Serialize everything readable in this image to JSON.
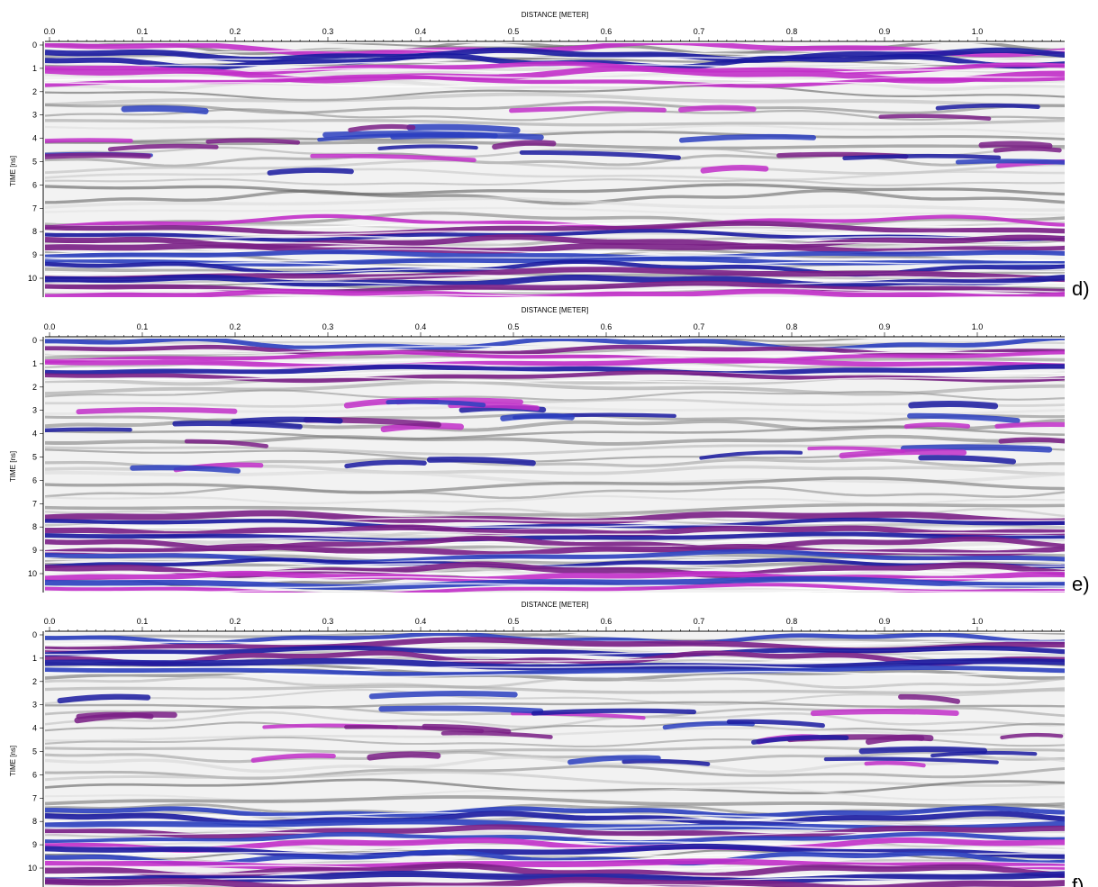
{
  "panels": [
    {
      "label": "d)",
      "x_axis_title": "DISTANCE [METER]",
      "y_axis_title": "TIME [ns]",
      "x_tick_labels": [
        "0.0",
        "0.1",
        "0.2",
        "0.3",
        "0.4",
        "0.5",
        "0.6",
        "0.7",
        "0.8",
        "0.9",
        "1.0"
      ],
      "y_tick_labels": [
        "0",
        "1",
        "2",
        "3",
        "4",
        "5",
        "6",
        "7",
        "8",
        "9",
        "10"
      ]
    },
    {
      "label": "e)",
      "x_axis_title": "DISTANCE [METER]",
      "y_axis_title": "TIME [ns]",
      "x_tick_labels": [
        "0.0",
        "0.1",
        "0.2",
        "0.3",
        "0.4",
        "0.5",
        "0.6",
        "0.7",
        "0.8",
        "0.9",
        "1.0"
      ],
      "y_tick_labels": [
        "0",
        "1",
        "2",
        "3",
        "4",
        "5",
        "6",
        "7",
        "8",
        "9",
        "10"
      ]
    },
    {
      "label": "f)",
      "x_axis_title": "DISTANCE [METER]",
      "y_axis_title": "TIME [ns]",
      "x_tick_labels": [
        "0.0",
        "0.1",
        "0.2",
        "0.3",
        "0.4",
        "0.5",
        "0.6",
        "0.7",
        "0.8",
        "0.9",
        "1.0"
      ],
      "y_tick_labels": [
        "0",
        "1",
        "2",
        "3",
        "4",
        "5",
        "6",
        "7",
        "8",
        "9",
        "10"
      ]
    }
  ]
}
